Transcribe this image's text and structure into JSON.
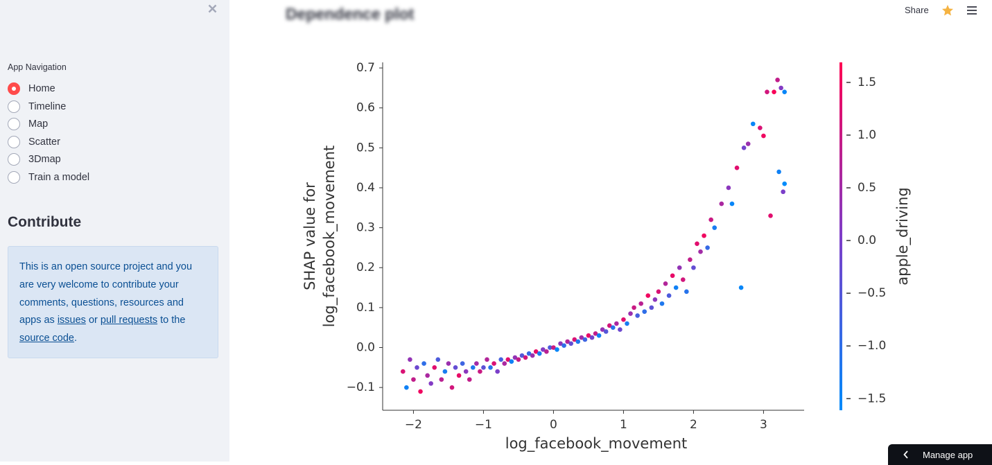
{
  "header": {
    "title": "Dependence plot",
    "share": "Share",
    "manage_app": "Manage app"
  },
  "sidebar": {
    "nav_label": "App Navigation",
    "options": [
      "Home",
      "Timeline",
      "Map",
      "Scatter",
      "3Dmap",
      "Train a model"
    ],
    "selected": 0,
    "contribute_heading": "Contribute",
    "contribute_parts": [
      "This is an open source project and you are very welcome to contribute your comments, questions, resources and apps as ",
      "issues",
      " or ",
      "pull requests",
      " to the ",
      "source code",
      "."
    ]
  },
  "chart_data": {
    "type": "scatter",
    "xlabel": "log_facebook_movement",
    "ylabel": [
      "SHAP value for",
      "log_facebook_movement"
    ],
    "colorbar_label": "apple_driving",
    "colormap": [
      "#008bfb",
      "#7e3dc8",
      "#ff0052"
    ],
    "xlim": [
      -2.44,
      3.58
    ],
    "xticks": [
      {
        "value": -2,
        "label": "−2"
      },
      {
        "value": -1,
        "label": "−1"
      },
      0,
      1,
      2,
      3
    ],
    "ylim": [
      -0.157,
      0.714
    ],
    "yticks": [
      {
        "value": -0.1,
        "label": "−0.1"
      },
      {
        "value": 0,
        "label": "0.0"
      },
      0.1,
      0.2,
      0.3,
      0.4,
      0.5,
      0.6,
      0.7
    ],
    "clim": [
      -1.61,
      1.69
    ],
    "cticks": [
      {
        "value": -1.5,
        "label": "−1.5"
      },
      {
        "value": -1,
        "label": "−1.0"
      },
      {
        "value": -0.5,
        "label": "−0.5"
      },
      {
        "value": 0,
        "label": "0.0"
      },
      0.5,
      {
        "value": 1,
        "label": "1.0"
      },
      1.5
    ],
    "x": [
      -2.15,
      -2.1,
      -2.05,
      -2.0,
      -1.95,
      -1.9,
      -1.85,
      -1.8,
      -1.75,
      -1.7,
      -1.65,
      -1.6,
      -1.55,
      -1.5,
      -1.45,
      -1.4,
      -1.35,
      -1.3,
      -1.25,
      -1.2,
      -1.15,
      -1.1,
      -1.05,
      -1.0,
      -0.95,
      -0.9,
      -0.85,
      -0.8,
      -0.75,
      -0.7,
      -0.65,
      -0.6,
      -0.55,
      -0.5,
      -0.45,
      -0.4,
      -0.35,
      -0.3,
      -0.25,
      -0.2,
      -0.15,
      -0.1,
      -0.05,
      0.0,
      0.05,
      0.1,
      0.15,
      0.2,
      0.25,
      0.3,
      0.35,
      0.4,
      0.45,
      0.5,
      0.55,
      0.6,
      0.65,
      0.7,
      0.75,
      0.8,
      0.85,
      0.9,
      0.95,
      1.0,
      1.05,
      1.1,
      1.15,
      1.2,
      1.25,
      1.3,
      1.35,
      1.4,
      1.45,
      1.5,
      1.55,
      1.6,
      1.65,
      1.7,
      1.75,
      1.8,
      1.85,
      1.9,
      1.95,
      2.0,
      2.05,
      2.1,
      2.15,
      2.2,
      2.25,
      2.3,
      2.4,
      2.5,
      2.55,
      2.62,
      2.68,
      2.72,
      2.78,
      2.85,
      2.95,
      3.0,
      3.05,
      3.1,
      3.15,
      3.2,
      3.22,
      3.25,
      3.28,
      3.3,
      3.3
    ],
    "values": [
      -0.06,
      -0.1,
      -0.03,
      -0.08,
      -0.05,
      -0.11,
      -0.04,
      -0.07,
      -0.09,
      -0.05,
      -0.03,
      -0.08,
      -0.06,
      -0.04,
      -0.1,
      -0.05,
      -0.07,
      -0.04,
      -0.06,
      -0.08,
      -0.05,
      -0.04,
      -0.06,
      -0.05,
      -0.03,
      -0.05,
      -0.04,
      -0.06,
      -0.03,
      -0.04,
      -0.03,
      -0.035,
      -0.025,
      -0.03,
      -0.02,
      -0.025,
      -0.015,
      -0.02,
      -0.01,
      -0.015,
      -0.005,
      -0.01,
      0.0,
      0.0,
      -0.005,
      0.01,
      0.005,
      0.015,
      0.01,
      0.02,
      0.015,
      0.025,
      0.02,
      0.03,
      0.025,
      0.035,
      0.03,
      0.045,
      0.04,
      0.055,
      0.05,
      0.06,
      0.045,
      0.07,
      0.06,
      0.085,
      0.1,
      0.08,
      0.11,
      0.09,
      0.13,
      0.1,
      0.12,
      0.14,
      0.11,
      0.16,
      0.13,
      0.18,
      0.15,
      0.2,
      0.17,
      0.14,
      0.22,
      0.2,
      0.26,
      0.24,
      0.28,
      0.25,
      0.32,
      0.3,
      0.36,
      0.4,
      0.36,
      0.45,
      0.15,
      0.5,
      0.51,
      0.56,
      0.55,
      0.53,
      0.64,
      0.33,
      0.64,
      0.67,
      0.44,
      0.65,
      0.39,
      0.64,
      0.41
    ],
    "color_values": [
      1.2,
      -1.4,
      0.3,
      0.9,
      -0.2,
      1.5,
      -1.0,
      0.6,
      0.1,
      1.3,
      -0.6,
      0.8,
      -1.3,
      0.4,
      1.1,
      -0.3,
      1.4,
      -0.8,
      0.2,
      0.9,
      -1.2,
      0.5,
      1.0,
      -0.4,
      0.7,
      -1.1,
      1.2,
      0.0,
      -0.7,
      0.6,
      1.3,
      -1.4,
      0.3,
      0.9,
      -0.5,
      1.1,
      -0.9,
      0.4,
      1.4,
      -1.3,
      0.1,
      0.8,
      -0.6,
      1.0,
      -1.5,
      0.2,
      -1.0,
      0.7,
      -0.3,
      1.2,
      -1.2,
      0.5,
      -0.8,
      1.4,
      -0.1,
      0.9,
      -1.4,
      0.3,
      -0.5,
      1.1,
      -1.1,
      0.6,
      -0.2,
      1.3,
      -1.3,
      0.4,
      1.0,
      -0.7,
      0.8,
      -1.0,
      1.5,
      -0.4,
      0.2,
      1.2,
      -1.2,
      0.7,
      -0.6,
      1.4,
      -1.4,
      0.3,
      1.1,
      -1.1,
      0.9,
      -0.3,
      1.3,
      0.5,
      1.5,
      -0.9,
      1.0,
      -1.3,
      0.6,
      0.2,
      -1.5,
      1.3,
      -1.5,
      -0.1,
      0.4,
      -1.5,
      1.2,
      1.5,
      1.1,
      1.3,
      1.6,
      0.9,
      -1.4,
      0.1,
      0.0,
      -1.5,
      -1.6
    ]
  }
}
